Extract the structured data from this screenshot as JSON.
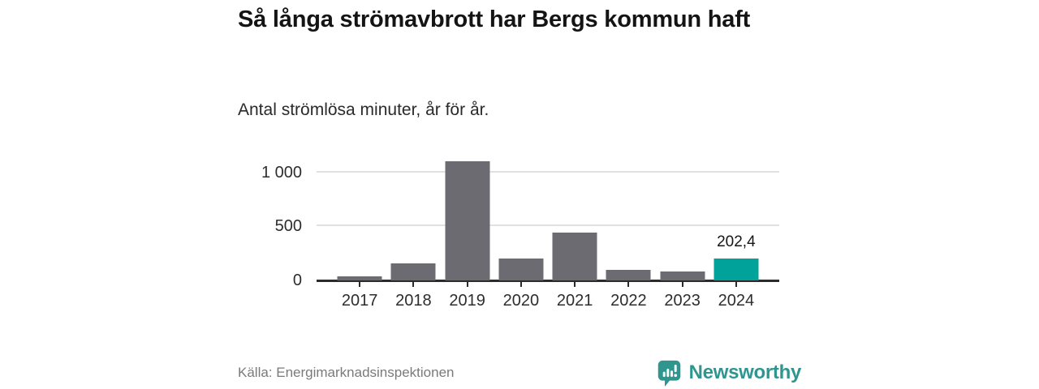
{
  "header": {
    "title": "Så långa strömavbrott har Bergs kommun haft",
    "subtitle": "Antal strömlösa minuter, år för år."
  },
  "chart_data": {
    "type": "bar",
    "categories": [
      "2017",
      "2018",
      "2019",
      "2020",
      "2021",
      "2022",
      "2023",
      "2024"
    ],
    "values": [
      35,
      155,
      1100,
      200,
      440,
      100,
      85,
      202.4
    ],
    "highlight_index": 7,
    "highlight_label": "202,4",
    "title": "Så långa strömavbrott har Bergs kommun haft",
    "subtitle": "Antal strömlösa minuter, år för år.",
    "xlabel": "",
    "ylabel": "",
    "yticks": [
      0,
      500,
      1000
    ],
    "ytick_labels": [
      "0",
      "500",
      "1 000"
    ],
    "ylim": [
      0,
      1170
    ],
    "grid": true,
    "legend": false,
    "bar_color_default": "#6c6b72",
    "bar_color_highlight": "#00a29a"
  },
  "footer": {
    "source": "Källa: Energimarknadsinspektionen",
    "brand": "Newsworthy",
    "logo_icon": "bar-chart-speech-bubble-icon"
  },
  "colors": {
    "accent_teal": "#00a29a",
    "brand_teal": "#2f968f",
    "bar_gray": "#6c6b72",
    "gridline": "#e1e1e1",
    "axis": "#2b2b2b",
    "text_dark": "#141414",
    "text_muted": "#7a7a7a",
    "background": "#ffffff"
  }
}
